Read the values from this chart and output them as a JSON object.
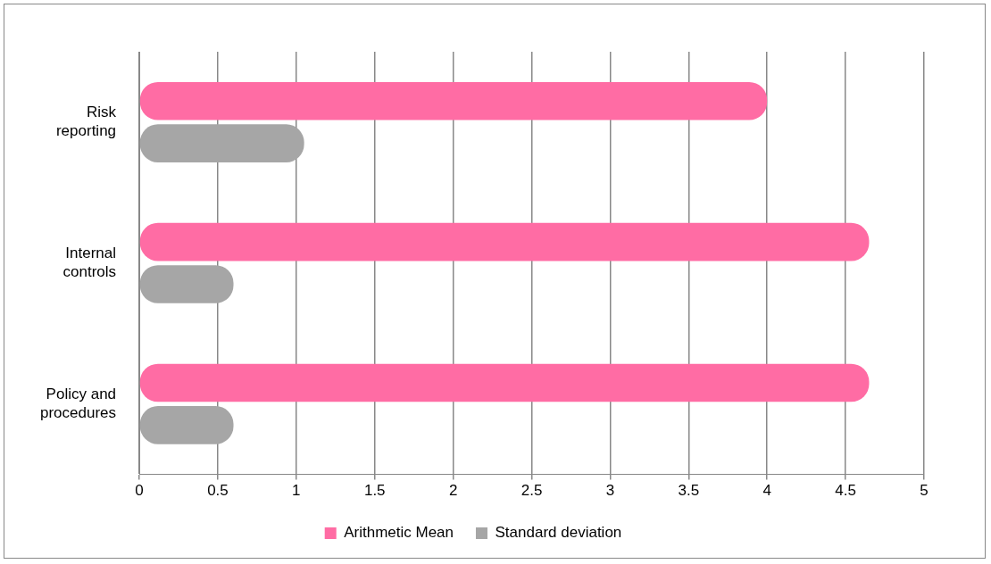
{
  "chart_data": {
    "type": "bar",
    "orientation": "horizontal",
    "categories": [
      "Risk reporting",
      "Internal controls",
      "Policy and procedures"
    ],
    "series": [
      {
        "name": "Arithmetic Mean",
        "color": "#ff6ca4",
        "values": [
          4.0,
          4.65,
          4.65
        ]
      },
      {
        "name": "Standard deviation",
        "color": "#a6a6a6",
        "values": [
          1.05,
          0.6,
          0.6
        ]
      }
    ],
    "xlim": [
      0,
      5
    ],
    "xticks": [
      0,
      0.5,
      1,
      1.5,
      2,
      2.5,
      3,
      3.5,
      4,
      4.5,
      5
    ],
    "grid": "x",
    "legend": "bottom"
  }
}
